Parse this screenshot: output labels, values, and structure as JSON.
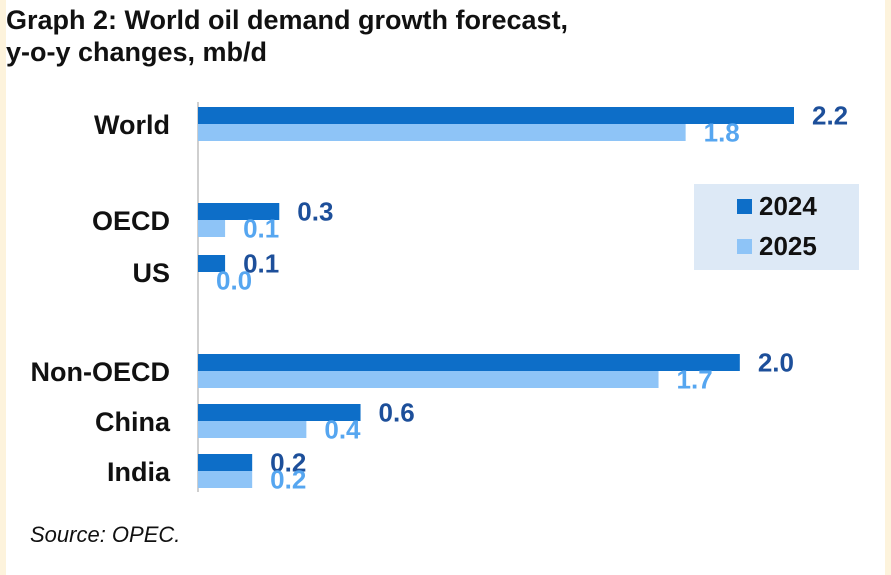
{
  "title_line1": "Graph 2: World oil demand growth forecast,",
  "title_line2": "y-o-y changes, mb/d",
  "source": "Source: OPEC.",
  "colors": {
    "series_2024": "#0d6ec8",
    "series_2025": "#8ec4f7",
    "label_2024": "#1d4f9a",
    "label_2025": "#56a6f0",
    "legend_bg": "#dde9f6",
    "axis": "#bfbfbf"
  },
  "chart_data": {
    "type": "bar",
    "orientation": "horizontal",
    "categories": [
      "World",
      "OECD",
      "US",
      "Non-OECD",
      "China",
      "India"
    ],
    "series": [
      {
        "name": "2024",
        "values": [
          2.2,
          0.3,
          0.1,
          2.0,
          0.6,
          0.2
        ],
        "labels": [
          "2.2",
          "0.3",
          "0.1",
          "2.0",
          "0.6",
          "0.2"
        ]
      },
      {
        "name": "2025",
        "values": [
          1.8,
          0.1,
          0.0,
          1.7,
          0.4,
          0.2
        ],
        "labels": [
          "1.8",
          "0.1",
          "0.0",
          "1.7",
          "0.4",
          "0.2"
        ]
      }
    ],
    "xlim": [
      0,
      2.2
    ],
    "grid": false,
    "legend_position": "right"
  }
}
